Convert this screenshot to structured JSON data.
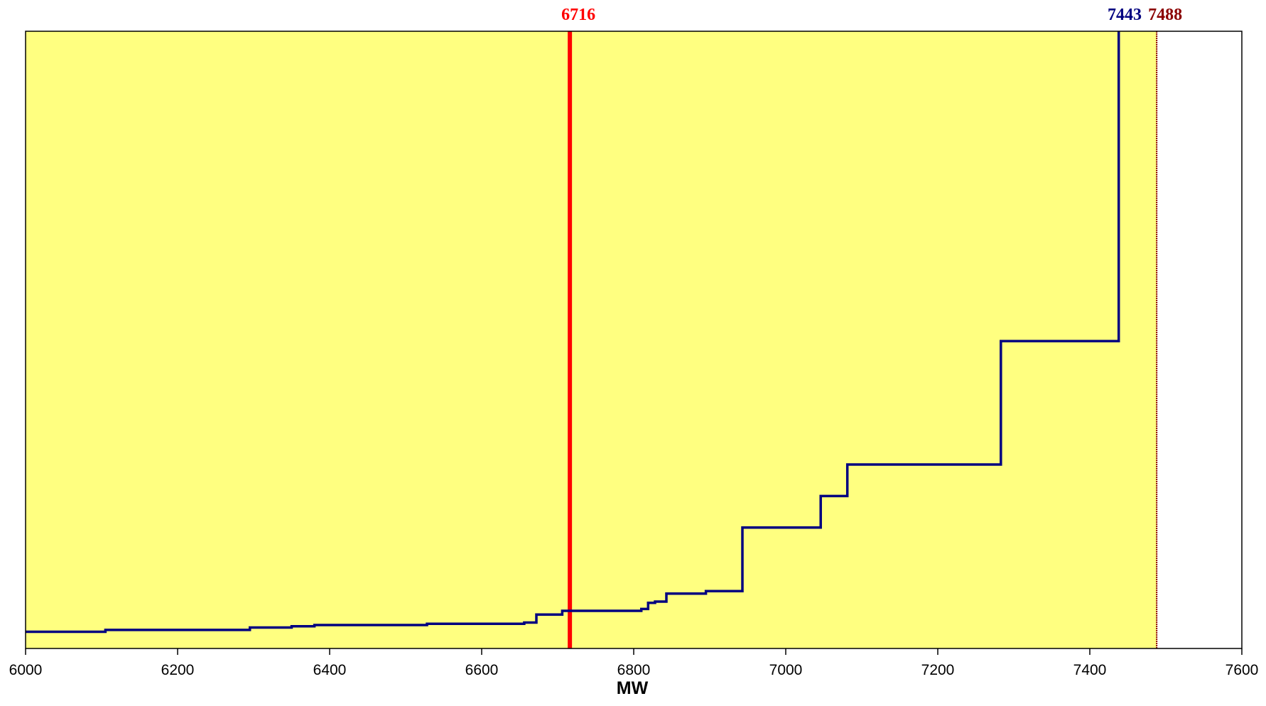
{
  "chart_data": {
    "type": "line",
    "title": "",
    "xlabel": "MW",
    "ylabel": "",
    "xlim": [
      6000,
      7600
    ],
    "ylim": [
      0,
      1000
    ],
    "grid": false,
    "legend": "none",
    "x_ticks": [
      "6000",
      "6200",
      "6400",
      "6600",
      "6800",
      "7000",
      "7200",
      "7400",
      "7600"
    ],
    "series": [
      {
        "line_style": "step",
        "color": "#000080",
        "points": [
          {
            "x": 6000,
            "y": 27
          },
          {
            "x": 6105,
            "y": 27
          },
          {
            "x": 6105,
            "y": 30
          },
          {
            "x": 6295,
            "y": 30
          },
          {
            "x": 6295,
            "y": 34
          },
          {
            "x": 6350,
            "y": 34
          },
          {
            "x": 6350,
            "y": 36
          },
          {
            "x": 6380,
            "y": 36
          },
          {
            "x": 6380,
            "y": 38
          },
          {
            "x": 6528,
            "y": 38
          },
          {
            "x": 6528,
            "y": 40
          },
          {
            "x": 6656,
            "y": 40
          },
          {
            "x": 6656,
            "y": 42
          },
          {
            "x": 6672,
            "y": 42
          },
          {
            "x": 6672,
            "y": 55
          },
          {
            "x": 6706,
            "y": 55
          },
          {
            "x": 6706,
            "y": 61
          },
          {
            "x": 6810,
            "y": 61
          },
          {
            "x": 6810,
            "y": 64
          },
          {
            "x": 6819,
            "y": 64
          },
          {
            "x": 6819,
            "y": 74
          },
          {
            "x": 6828,
            "y": 74
          },
          {
            "x": 6828,
            "y": 76
          },
          {
            "x": 6843,
            "y": 76
          },
          {
            "x": 6843,
            "y": 89
          },
          {
            "x": 6895,
            "y": 89
          },
          {
            "x": 6895,
            "y": 93
          },
          {
            "x": 6943,
            "y": 93
          },
          {
            "x": 6943,
            "y": 196
          },
          {
            "x": 7046,
            "y": 196
          },
          {
            "x": 7046,
            "y": 247
          },
          {
            "x": 7081,
            "y": 247
          },
          {
            "x": 7081,
            "y": 298
          },
          {
            "x": 7283,
            "y": 298
          },
          {
            "x": 7283,
            "y": 498
          },
          {
            "x": 7438,
            "y": 498
          },
          {
            "x": 7438,
            "y": 1000
          }
        ]
      }
    ],
    "markers": [
      {
        "x": 6716,
        "label": "6716",
        "color": "#ff0000",
        "label_color": "#ff0000",
        "style": "thick"
      },
      {
        "x": 7443,
        "label": "7443",
        "color": "#000080",
        "label_color": "#000080",
        "style": "label-only"
      },
      {
        "x": 7488,
        "label": "7488",
        "color": "#8b0000",
        "label_color": "#8b0000",
        "style": "thin"
      }
    ],
    "shaded_region": {
      "x_start": 6000,
      "x_end": 7488,
      "color": "#ffff80"
    },
    "colors": {
      "plot_background": "#ffffff",
      "border": "#000000"
    }
  }
}
